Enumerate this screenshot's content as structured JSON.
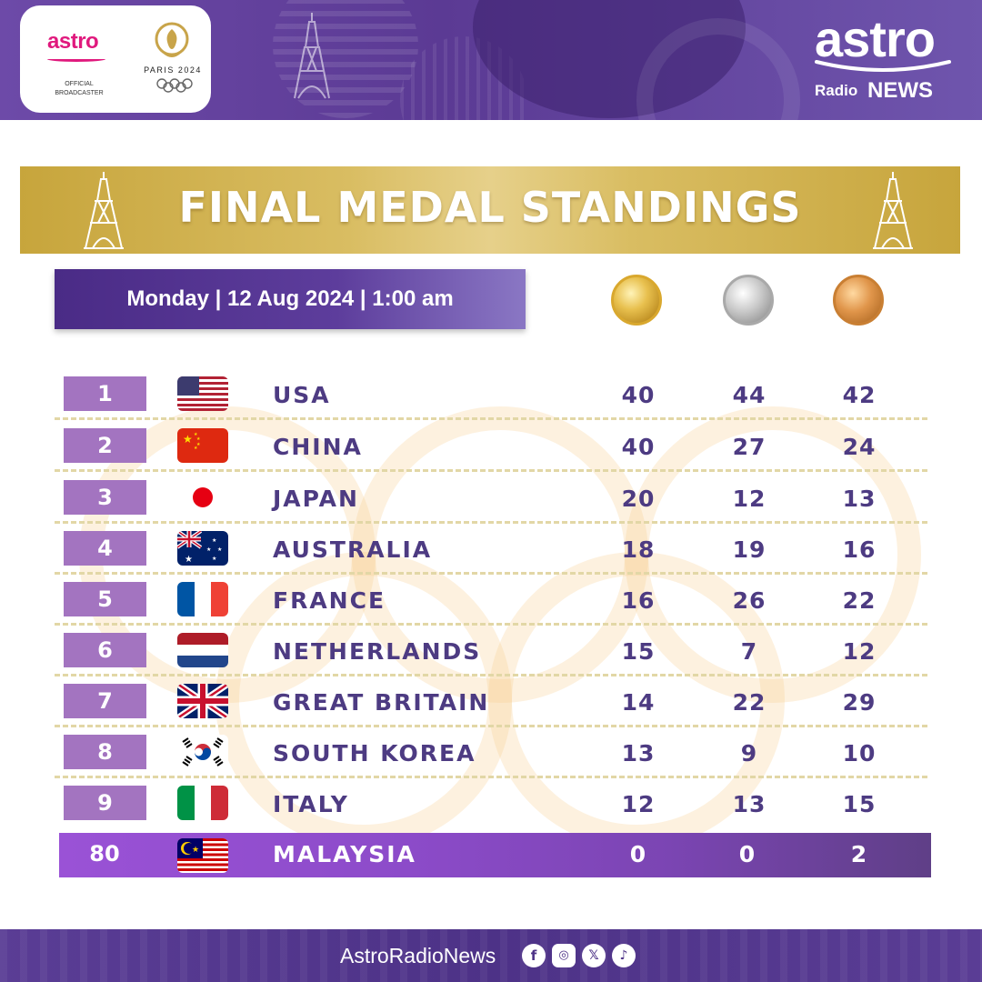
{
  "header": {
    "partner_brand": "astro",
    "partner_caption_line1": "OFFICIAL",
    "partner_caption_line2": "BROADCASTER",
    "paris_label": "PARIS 2024",
    "brand_name": "astro",
    "brand_sub1": "Radio",
    "brand_sub2": "NEWS"
  },
  "title": "FINAL MEDAL STANDINGS",
  "date_line": "Monday | 12 Aug 2024 | 1:00 am",
  "medal_icons": [
    "gold-medal-icon",
    "silver-medal-icon",
    "bronze-medal-icon"
  ],
  "standings": [
    {
      "rank": "1",
      "country": "USA",
      "flag": "usa-flag-icon",
      "gold": "40",
      "silver": "44",
      "bronze": "42"
    },
    {
      "rank": "2",
      "country": "CHINA",
      "flag": "china-flag-icon",
      "gold": "40",
      "silver": "27",
      "bronze": "24"
    },
    {
      "rank": "3",
      "country": "JAPAN",
      "flag": "japan-flag-icon",
      "gold": "20",
      "silver": "12",
      "bronze": "13"
    },
    {
      "rank": "4",
      "country": "AUSTRALIA",
      "flag": "australia-flag-icon",
      "gold": "18",
      "silver": "19",
      "bronze": "16"
    },
    {
      "rank": "5",
      "country": "FRANCE",
      "flag": "france-flag-icon",
      "gold": "16",
      "silver": "26",
      "bronze": "22"
    },
    {
      "rank": "6",
      "country": "NETHERLANDS",
      "flag": "netherlands-flag-icon",
      "gold": "15",
      "silver": "7",
      "bronze": "12"
    },
    {
      "rank": "7",
      "country": "GREAT BRITAIN",
      "flag": "great-britain-flag-icon",
      "gold": "14",
      "silver": "22",
      "bronze": "29"
    },
    {
      "rank": "8",
      "country": "SOUTH KOREA",
      "flag": "south-korea-flag-icon",
      "gold": "13",
      "silver": "9",
      "bronze": "10"
    },
    {
      "rank": "9",
      "country": "ITALY",
      "flag": "italy-flag-icon",
      "gold": "12",
      "silver": "13",
      "bronze": "15"
    }
  ],
  "highlight": {
    "rank": "80",
    "country": "MALAYSIA",
    "flag": "malaysia-flag-icon",
    "gold": "0",
    "silver": "0",
    "bronze": "2"
  },
  "footer": {
    "handle": "AstroRadioNews",
    "social_icons": [
      "facebook-icon",
      "instagram-icon",
      "x-icon",
      "tiktok-icon"
    ]
  },
  "colors": {
    "brand_purple": "#5b3a94",
    "title_gold": "#d9bd62",
    "rank_box": "#a374c0",
    "text_purple": "#4d3b82",
    "highlight_row": "#8c4bc9"
  }
}
